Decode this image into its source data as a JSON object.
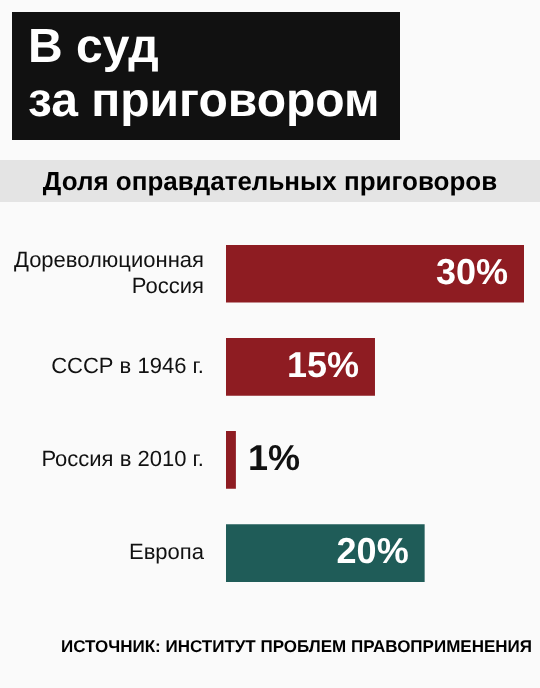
{
  "chart_data": {
    "type": "bar",
    "orientation": "horizontal",
    "title": "В суд\nза приговором",
    "subtitle": "Доля оправдательных приговоров",
    "categories": [
      "Дореволюционная Россия",
      "СССР в 1946 г.",
      "Россия в 2010 г.",
      "Европа"
    ],
    "values": [
      30,
      15,
      1,
      20
    ],
    "colors": [
      "#8e1c22",
      "#8e1c22",
      "#8e1c22",
      "#1f5c58"
    ],
    "value_labels": [
      "30%",
      "15%",
      "1%",
      "20%"
    ],
    "annotations": [
      "ИСТОЧНИК: ИНСТИТУТ ПРОБЛЕМ ПРАВОПРИМЕНЕНИЯ"
    ]
  }
}
